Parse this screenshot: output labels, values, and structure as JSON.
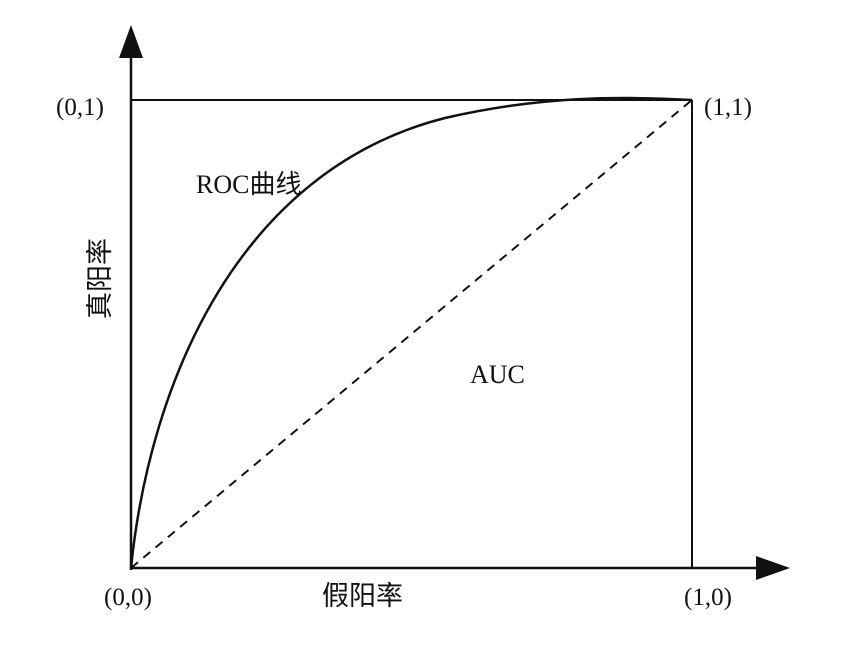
{
  "curve_label": "ROC曲线",
  "area_label": "AUC",
  "x_axis_label": "假阳率",
  "y_axis_label": "真阳率",
  "corners": {
    "origin": "(0,0)",
    "top_left": "(0,1)",
    "top_right": "(1,1)",
    "bottom_right": "(1,0)"
  },
  "colors": {
    "line": "#111111",
    "background": "#ffffff"
  }
}
